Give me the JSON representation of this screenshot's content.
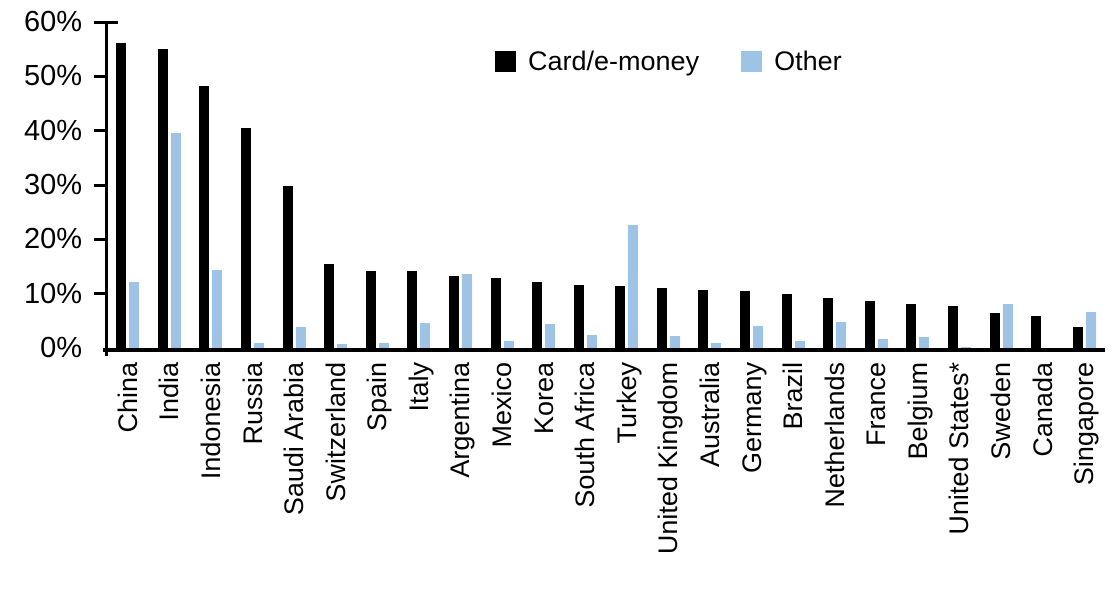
{
  "chart_data": {
    "type": "bar",
    "title": "",
    "xlabel": "",
    "ylabel": "",
    "ylim": [
      0,
      60
    ],
    "ytick_step": 10,
    "ytick_labels": [
      "0%",
      "10%",
      "20%",
      "30%",
      "40%",
      "50%",
      "60%"
    ],
    "grid": false,
    "legend_position": "top-center-inside",
    "categories": [
      "China",
      "India",
      "Indonesia",
      "Russia",
      "Saudi Arabia",
      "Switzerland",
      "Spain",
      "Italy",
      "Argentina",
      "Mexico",
      "Korea",
      "South Africa",
      "Turkey",
      "United Kingdom",
      "Australia",
      "Germany",
      "Brazil",
      "Netherlands",
      "France",
      "Belgium",
      "United States*",
      "Sweden",
      "Canada",
      "Singapore"
    ],
    "series": [
      {
        "name": "Card/e-money",
        "color": "#000000",
        "values": [
          56.2,
          55.0,
          48.2,
          40.5,
          29.8,
          15.5,
          14.2,
          14.1,
          13.3,
          12.8,
          12.2,
          11.6,
          11.5,
          11.1,
          10.7,
          10.5,
          10.0,
          9.2,
          8.7,
          8.1,
          7.8,
          6.4,
          5.8,
          3.8
        ]
      },
      {
        "name": "Other",
        "color": "#9DC3E6",
        "values": [
          12.1,
          39.6,
          14.4,
          1.0,
          3.8,
          0.8,
          1.0,
          4.6,
          13.7,
          1.3,
          4.5,
          2.4,
          22.6,
          2.3,
          1.0,
          4.0,
          1.2,
          4.8,
          1.6,
          2.0,
          0.2,
          8.1,
          0.0,
          6.6
        ]
      }
    ]
  }
}
